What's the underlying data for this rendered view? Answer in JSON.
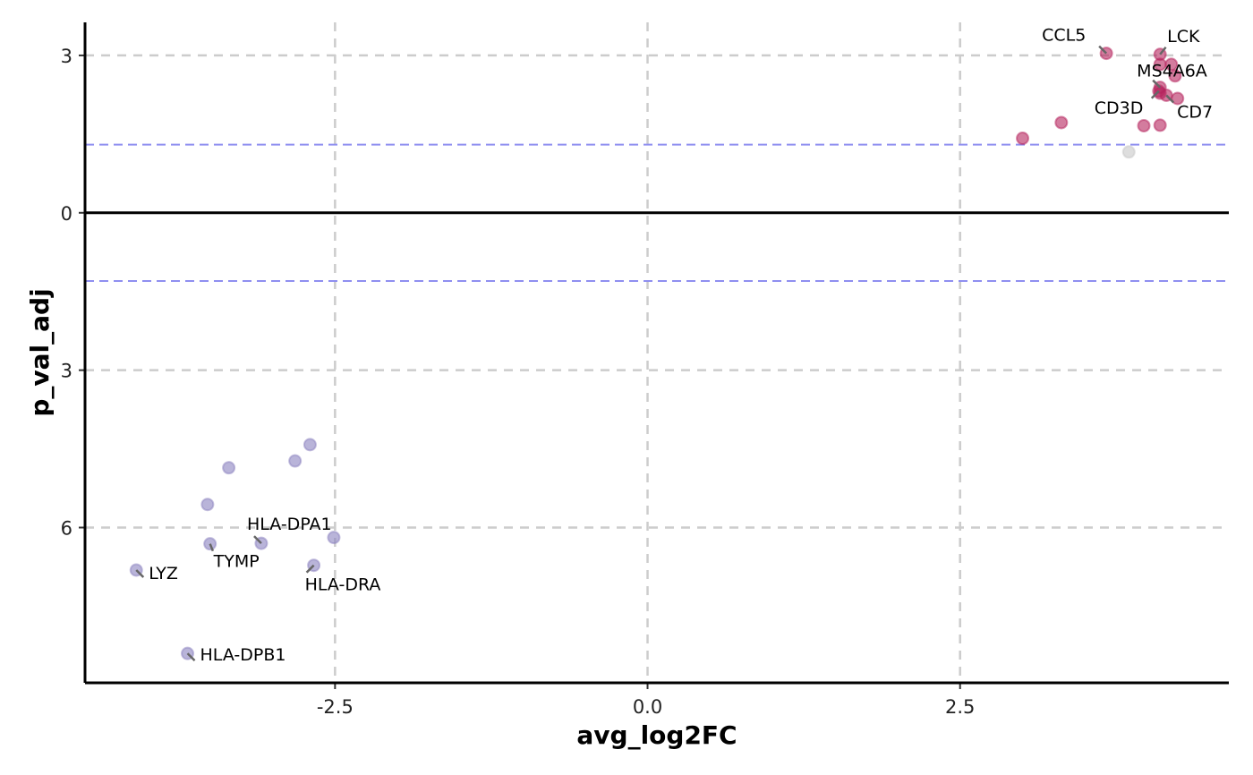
{
  "chart_data": {
    "type": "scatter",
    "title": "",
    "xlabel": "avg_log2FC",
    "ylabel": "p_val_adj",
    "xlim": [
      -4.5,
      4.65
    ],
    "ylim": [
      -8.96,
      3.63
    ],
    "xticks": [
      {
        "v": -2.5,
        "label": "-2.5"
      },
      {
        "v": 0,
        "label": "0.0"
      },
      {
        "v": 2.5,
        "label": "2.5"
      }
    ],
    "yticks": [
      {
        "v": 3,
        "label": "3"
      },
      {
        "v": 0,
        "label": "0"
      },
      {
        "v": -3,
        "label": "3"
      },
      {
        "v": -6,
        "label": "6"
      }
    ],
    "grid": true,
    "threshold_lines": [
      1.3,
      -1.3
    ],
    "colors": {
      "up": "#b5245e",
      "down": "#8b82bf",
      "ns": "#c8c8c8",
      "threshold": "#8f8ff0",
      "grid": "#cccccc",
      "label_segment": "#666666"
    },
    "points": [
      {
        "x": 3.67,
        "y": 3.04,
        "group": "up",
        "label": "CCL5"
      },
      {
        "x": 4.1,
        "y": 3.02,
        "group": "up",
        "label": "LCK"
      },
      {
        "x": 4.1,
        "y": 2.83,
        "group": "up"
      },
      {
        "x": 4.19,
        "y": 2.83,
        "group": "up"
      },
      {
        "x": 4.22,
        "y": 2.61,
        "group": "up"
      },
      {
        "x": 4.1,
        "y": 2.39,
        "group": "up",
        "label": "MS4A6A"
      },
      {
        "x": 4.09,
        "y": 2.32,
        "group": "up",
        "label": "CD3D"
      },
      {
        "x": 4.1,
        "y": 2.28,
        "group": "up"
      },
      {
        "x": 4.15,
        "y": 2.24,
        "group": "up",
        "label": "CD7"
      },
      {
        "x": 4.24,
        "y": 2.18,
        "group": "up"
      },
      {
        "x": 3.97,
        "y": 1.66,
        "group": "up"
      },
      {
        "x": 4.1,
        "y": 1.67,
        "group": "up"
      },
      {
        "x": 3.31,
        "y": 1.72,
        "group": "up"
      },
      {
        "x": 3.0,
        "y": 1.42,
        "group": "up"
      },
      {
        "x": 3.85,
        "y": 1.16,
        "group": "ns"
      },
      {
        "x": -2.7,
        "y": -4.42,
        "group": "down"
      },
      {
        "x": -2.82,
        "y": -4.73,
        "group": "down"
      },
      {
        "x": -3.35,
        "y": -4.86,
        "group": "down"
      },
      {
        "x": -3.52,
        "y": -5.56,
        "group": "down"
      },
      {
        "x": -3.5,
        "y": -6.31,
        "group": "down",
        "label": "TYMP"
      },
      {
        "x": -3.09,
        "y": -6.3,
        "group": "down",
        "label": "HLA-DPA1"
      },
      {
        "x": -2.51,
        "y": -6.19,
        "group": "down"
      },
      {
        "x": -2.67,
        "y": -6.72,
        "group": "down",
        "label": "HLA-DRA"
      },
      {
        "x": -4.09,
        "y": -6.81,
        "group": "down",
        "label": "LYZ"
      },
      {
        "x": -3.68,
        "y": -8.4,
        "group": "down",
        "label": "HLA-DPB1"
      }
    ]
  }
}
